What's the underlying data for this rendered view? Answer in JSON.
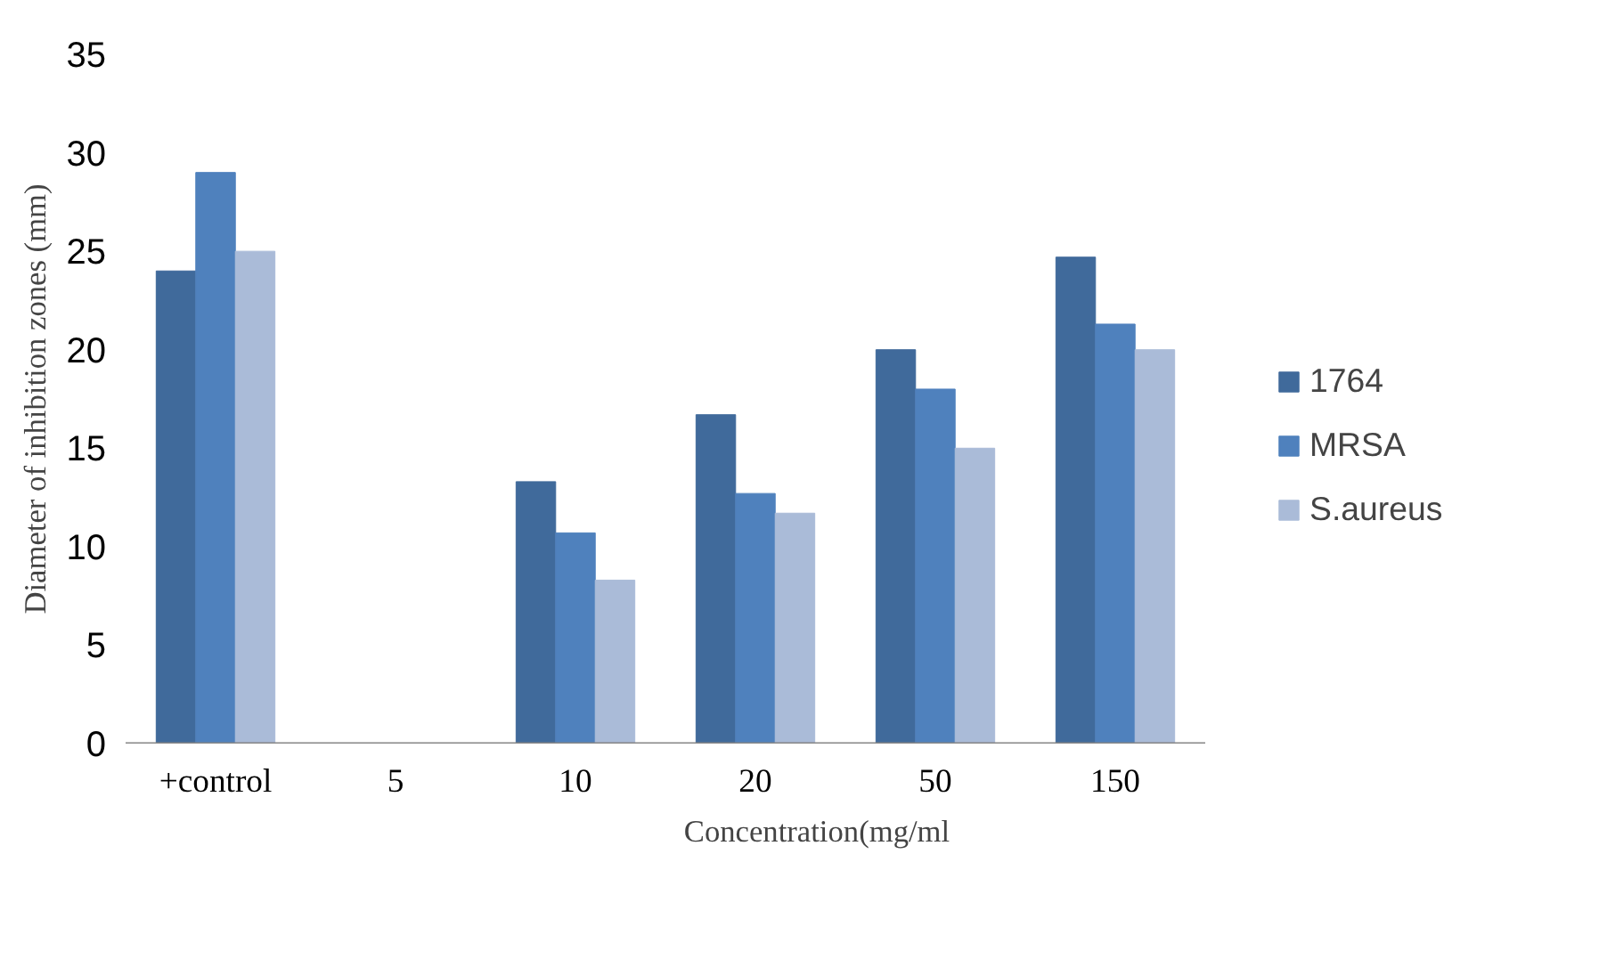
{
  "chart_data": {
    "type": "bar",
    "xlabel": "Concentration(mg/ml",
    "ylabel": "Diameter of inhibition zones (mm)",
    "categories": [
      "+control",
      "5",
      "10",
      "20",
      "50",
      "150"
    ],
    "series": [
      {
        "name": "1764",
        "color": "#406a9b",
        "values": [
          24,
          0,
          13.3,
          16.7,
          20,
          24.7
        ]
      },
      {
        "name": "MRSA",
        "color": "#4f81bd",
        "values": [
          29,
          0,
          10.7,
          12.7,
          18,
          21.3
        ]
      },
      {
        "name": "S.aureus",
        "color": "#aabbd8",
        "values": [
          25,
          0,
          8.3,
          11.7,
          15,
          20
        ]
      }
    ],
    "ylim": [
      0,
      35
    ],
    "yticks": [
      0,
      5,
      10,
      15,
      20,
      25,
      30,
      35
    ],
    "grid": false,
    "legend": "right"
  }
}
